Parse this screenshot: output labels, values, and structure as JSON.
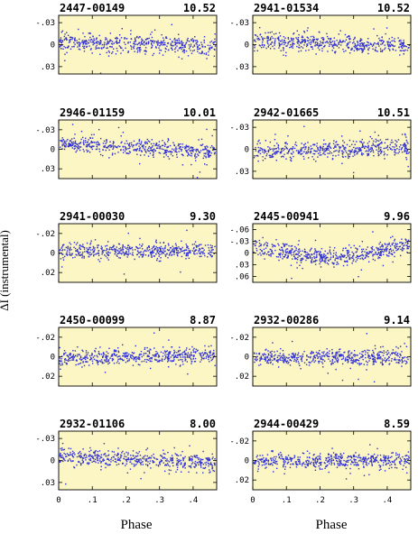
{
  "figure": {
    "ylabel": "ΔI (instrumental)",
    "xlabel_left": "Phase",
    "xlabel_right": "Phase"
  },
  "colors": {
    "panel_bg": "#fbf6c3",
    "points": "#2f2fd6",
    "frame": "#000000"
  },
  "chart_data": [
    {
      "type": "scatter",
      "id": "2447-00149",
      "mag": "10.52",
      "xlim": [
        0,
        0.47
      ],
      "ylim": [
        -0.04,
        0.04
      ],
      "y_inverted": true,
      "yticks": [
        -0.03,
        0,
        0.03
      ],
      "ytick_labels": [
        "-.03",
        "0",
        ".03"
      ],
      "xticks": [
        0,
        0.1,
        0.2,
        0.3,
        0.4
      ],
      "xtick_labels": [
        "0",
        ".1",
        ".2",
        ".3",
        ".4"
      ],
      "show_xticklabels": false,
      "trend": [
        [
          0,
          -0.004
        ],
        [
          0.47,
          0.002
        ]
      ],
      "scatter_sd": 0.006,
      "n_points": 520
    },
    {
      "type": "scatter",
      "id": "2941-01534",
      "mag": "10.52",
      "xlim": [
        0,
        0.47
      ],
      "ylim": [
        -0.04,
        0.04
      ],
      "y_inverted": true,
      "yticks": [
        -0.03,
        0,
        0.03
      ],
      "ytick_labels": [
        "-.03",
        "0",
        ".03"
      ],
      "xticks": [
        0,
        0.1,
        0.2,
        0.3,
        0.4
      ],
      "xtick_labels": [
        "0",
        ".1",
        ".2",
        ".3",
        ".4"
      ],
      "show_xticklabels": false,
      "trend": [
        [
          0,
          -0.006
        ],
        [
          0.47,
          0.003
        ]
      ],
      "scatter_sd": 0.006,
      "n_points": 520
    },
    {
      "type": "scatter",
      "id": "2946-01159",
      "mag": "10.01",
      "xlim": [
        0,
        0.47
      ],
      "ylim": [
        -0.045,
        0.045
      ],
      "y_inverted": true,
      "yticks": [
        -0.03,
        0,
        0.03
      ],
      "ytick_labels": [
        "-.03",
        "0",
        ".03"
      ],
      "xticks": [
        0,
        0.1,
        0.2,
        0.3,
        0.4
      ],
      "xtick_labels": [
        "0",
        ".1",
        ".2",
        ".3",
        ".4"
      ],
      "show_xticklabels": false,
      "trend": [
        [
          0,
          -0.008
        ],
        [
          0.47,
          0.004
        ]
      ],
      "scatter_sd": 0.006,
      "n_points": 520
    },
    {
      "type": "scatter",
      "id": "2942-01665",
      "mag": "10.51",
      "xlim": [
        0,
        0.47
      ],
      "ylim": [
        -0.04,
        0.04
      ],
      "y_inverted": true,
      "yticks": [
        -0.03,
        0,
        0.03
      ],
      "ytick_labels": [
        "-.03",
        "0",
        ".03"
      ],
      "xticks": [
        0,
        0.1,
        0.2,
        0.3,
        0.4
      ],
      "xtick_labels": [
        "0",
        ".1",
        ".2",
        ".3",
        ".4"
      ],
      "show_xticklabels": false,
      "trend": [
        [
          0,
          0.004
        ],
        [
          0.47,
          -0.005
        ]
      ],
      "scatter_sd": 0.006,
      "n_points": 520
    },
    {
      "type": "scatter",
      "id": "2941-00030",
      "mag": "9.30",
      "xlim": [
        0,
        0.47
      ],
      "ylim": [
        -0.03,
        0.03
      ],
      "y_inverted": true,
      "yticks": [
        -0.02,
        0,
        0.02
      ],
      "ytick_labels": [
        "-.02",
        "0",
        ".02"
      ],
      "xticks": [
        0,
        0.1,
        0.2,
        0.3,
        0.4
      ],
      "xtick_labels": [
        "0",
        ".1",
        ".2",
        ".3",
        ".4"
      ],
      "show_xticklabels": false,
      "trend": [
        [
          0,
          -0.002
        ],
        [
          0.47,
          -0.002
        ]
      ],
      "scatter_sd": 0.004,
      "n_points": 520
    },
    {
      "type": "scatter",
      "id": "2445-00941",
      "mag": "9.96",
      "xlim": [
        0,
        0.47
      ],
      "ylim": [
        -0.075,
        0.075
      ],
      "y_inverted": true,
      "yticks": [
        -0.06,
        -0.03,
        0,
        0.03,
        0.06
      ],
      "ytick_labels": [
        "-.06",
        "-.03",
        "0",
        ".03",
        ".06"
      ],
      "xticks": [
        0,
        0.1,
        0.2,
        0.3,
        0.4
      ],
      "xtick_labels": [
        "0",
        ".1",
        ".2",
        ".3",
        ".4"
      ],
      "show_xticklabels": false,
      "trend": [
        [
          0,
          -0.015
        ],
        [
          0.25,
          0.015
        ],
        [
          0.47,
          -0.018
        ]
      ],
      "scatter_sd": 0.011,
      "n_points": 560
    },
    {
      "type": "scatter",
      "id": "2450-00099",
      "mag": "8.87",
      "xlim": [
        0,
        0.47
      ],
      "ylim": [
        -0.03,
        0.03
      ],
      "y_inverted": true,
      "yticks": [
        -0.02,
        0,
        0.02
      ],
      "ytick_labels": [
        "-.02",
        "0",
        ".02"
      ],
      "xticks": [
        0,
        0.1,
        0.2,
        0.3,
        0.4
      ],
      "xtick_labels": [
        "0",
        ".1",
        ".2",
        ".3",
        ".4"
      ],
      "show_xticklabels": false,
      "trend": [
        [
          0,
          0.002
        ],
        [
          0.1,
          0.001
        ],
        [
          0.47,
          -0.002
        ]
      ],
      "scatter_sd": 0.004,
      "n_points": 520
    },
    {
      "type": "scatter",
      "id": "2932-00286",
      "mag": "9.14",
      "xlim": [
        0,
        0.47
      ],
      "ylim": [
        -0.03,
        0.03
      ],
      "y_inverted": true,
      "yticks": [
        -0.02,
        0,
        0.02
      ],
      "ytick_labels": [
        "-.02",
        "0",
        ".02"
      ],
      "xticks": [
        0,
        0.1,
        0.2,
        0.3,
        0.4
      ],
      "xtick_labels": [
        "0",
        ".1",
        ".2",
        ".3",
        ".4"
      ],
      "show_xticklabels": false,
      "trend": [
        [
          0,
          0.001
        ],
        [
          0.47,
          0.001
        ]
      ],
      "scatter_sd": 0.004,
      "n_points": 520
    },
    {
      "type": "scatter",
      "id": "2932-01106",
      "mag": "8.00",
      "xlim": [
        0,
        0.47
      ],
      "ylim": [
        -0.04,
        0.04
      ],
      "y_inverted": true,
      "yticks": [
        -0.03,
        0,
        0.03
      ],
      "ytick_labels": [
        "-.03",
        "0",
        ".03"
      ],
      "xticks": [
        0,
        0.1,
        0.2,
        0.3,
        0.4
      ],
      "xtick_labels": [
        "0",
        ".1",
        ".2",
        ".3",
        ".4"
      ],
      "show_xticklabels": true,
      "trend": [
        [
          0,
          -0.006
        ],
        [
          0.47,
          0.004
        ]
      ],
      "scatter_sd": 0.006,
      "n_points": 520
    },
    {
      "type": "scatter",
      "id": "2944-00429",
      "mag": "8.59",
      "xlim": [
        0,
        0.47
      ],
      "ylim": [
        -0.03,
        0.03
      ],
      "y_inverted": true,
      "yticks": [
        -0.02,
        0,
        0.02
      ],
      "ytick_labels": [
        "-.02",
        "0",
        ".02"
      ],
      "xticks": [
        0,
        0.1,
        0.2,
        0.3,
        0.4
      ],
      "xtick_labels": [
        "0",
        ".1",
        ".2",
        ".3",
        ".4"
      ],
      "show_xticklabels": true,
      "trend": [
        [
          0,
          0.0
        ],
        [
          0.47,
          0.0
        ]
      ],
      "scatter_sd": 0.004,
      "n_points": 520
    }
  ]
}
